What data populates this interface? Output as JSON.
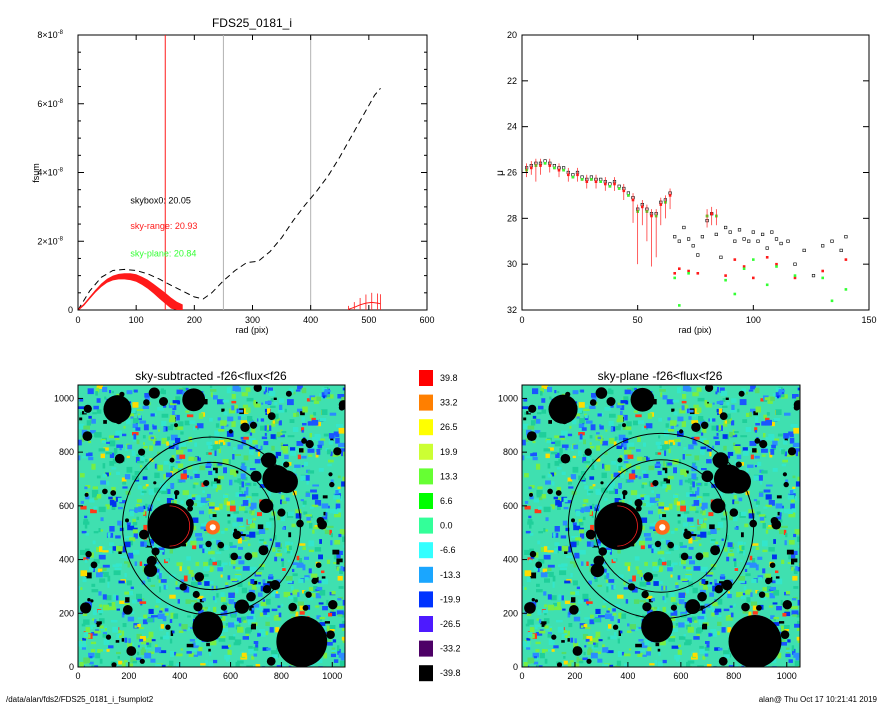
{
  "colors": {
    "red": "#ff1a1a",
    "green": "#33ff33",
    "black": "#000000",
    "gray": "#b3b3b3",
    "map_cyan": "#33e6cc",
    "map_lime": "#77ee44",
    "map_blue": "#1a55ff",
    "ring": "#000000"
  },
  "footer": {
    "left": "/data/alan/fds2/FDS25_0181_i_fsumplot2",
    "right": "alan@  Thu Oct 17 10:21:41 2019"
  },
  "chart_data": [
    {
      "type": "line",
      "title": "FDS25_0181_i",
      "xlabel": "rad (pix)",
      "ylabel": "fsum",
      "xlim": [
        0,
        600
      ],
      "ylim": [
        0,
        8e-08
      ],
      "xticks": [
        "0",
        "100",
        "200",
        "300",
        "400",
        "500",
        "600"
      ],
      "yticks": [
        {
          "mant": "0",
          "exp": ""
        },
        {
          "mant": "2×10",
          "exp": "-8"
        },
        {
          "mant": "4×10",
          "exp": "-8"
        },
        {
          "mant": "6×10",
          "exp": "-8"
        },
        {
          "mant": "8×10",
          "exp": "-8"
        }
      ],
      "vlines": [
        {
          "x": 150,
          "color": "red"
        },
        {
          "x": 250,
          "color": "gray"
        },
        {
          "x": 400,
          "color": "gray"
        }
      ],
      "series": [
        {
          "style": "dashed",
          "color": "black",
          "x": [
            0,
            20,
            40,
            60,
            80,
            100,
            120,
            140,
            160,
            180,
            200,
            215,
            230,
            250,
            270,
            290,
            310,
            330,
            350,
            370,
            390,
            410,
            430,
            450,
            470,
            490,
            510,
            520
          ],
          "y": [
            0,
            5.5e-09,
            9.5e-09,
            1.15e-08,
            1.18e-08,
            1.15e-08,
            1.05e-08,
            9e-09,
            7.2e-09,
            5.5e-09,
            3.8e-09,
            3.2e-09,
            5e-09,
            8.5e-09,
            1.15e-08,
            1.38e-08,
            1.42e-08,
            1.7e-08,
            2.1e-08,
            2.6e-08,
            3.05e-08,
            3.45e-08,
            3.9e-08,
            4.45e-08,
            5.05e-08,
            5.65e-08,
            6.25e-08,
            6.45e-08
          ]
        },
        {
          "style": "errorband",
          "color": "red",
          "x": [
            0,
            10,
            20,
            30,
            40,
            50,
            60,
            70,
            80,
            90,
            100,
            110,
            120,
            130,
            140,
            150,
            160,
            170,
            180
          ],
          "y": [
            0,
            1.5e-09,
            3.5e-09,
            5.5e-09,
            7.2e-09,
            8.5e-09,
            9.3e-09,
            9.7e-09,
            9.8e-09,
            9.7e-09,
            9.3e-09,
            8.5e-09,
            7.5e-09,
            6.2e-09,
            4.8e-09,
            3.4e-09,
            2e-09,
            8e-10,
            0.0
          ],
          "err": [
            0,
            2e-10,
            3e-10,
            4e-10,
            5e-10,
            6e-10,
            7e-10,
            8e-10,
            9e-10,
            1e-09,
            1.1e-09,
            1.2e-09,
            1.3e-09,
            1.4e-09,
            1.5e-09,
            1.6e-09,
            1.6e-09,
            1.6e-09,
            1.6e-09
          ]
        },
        {
          "style": "errorbars",
          "color": "red",
          "x": [
            465,
            475,
            485,
            495,
            505,
            515,
            520
          ],
          "y": [
            2e-10,
            8e-10,
            1.5e-09,
            2e-09,
            2.2e-09,
            2e-09,
            1.8e-09
          ],
          "err": [
            1e-09,
            1.5e-09,
            2e-09,
            2.5e-09,
            2.8e-09,
            2.8e-09,
            2.8e-09
          ]
        }
      ],
      "annotations": [
        {
          "text": "skybox0: 20.05",
          "color": "black",
          "x": 90,
          "y": 3.1e-08
        },
        {
          "text": "sky-range: 20.93",
          "color": "red",
          "x": 90,
          "y": 2.35e-08
        },
        {
          "text": "sky-plane: 20.84",
          "color": "green",
          "x": 90,
          "y": 1.55e-08
        }
      ]
    },
    {
      "type": "scatter",
      "title": "",
      "xlabel": "rad (pix)",
      "ylabel": "μ",
      "xlim": [
        0,
        150
      ],
      "ylim": [
        20,
        32
      ],
      "y_inverted": true,
      "xticks": [
        "0",
        "50",
        "100",
        "150"
      ],
      "yticks": [
        "20",
        "22",
        "24",
        "26",
        "28",
        "30",
        "32"
      ],
      "series": [
        {
          "color": "black",
          "marker": "square-open",
          "x": [
            2,
            4,
            6,
            8,
            10,
            12,
            14,
            16,
            18,
            20,
            22,
            24,
            26,
            28,
            30,
            32,
            34,
            36,
            38,
            40,
            42,
            44,
            46,
            48,
            50,
            52,
            54,
            56,
            58,
            60,
            62,
            64,
            66,
            68,
            70,
            72,
            74,
            76,
            78,
            80,
            82,
            84,
            86,
            88,
            90,
            92,
            94,
            96,
            98,
            100,
            102,
            104,
            106,
            108,
            110,
            112,
            115,
            118,
            122,
            126,
            130,
            134,
            138,
            140
          ],
          "y": [
            25.8,
            25.7,
            25.6,
            25.6,
            25.5,
            25.6,
            25.7,
            25.8,
            25.8,
            26.0,
            26.1,
            26.0,
            26.2,
            26.3,
            26.2,
            26.3,
            26.3,
            26.4,
            26.5,
            26.4,
            26.6,
            26.7,
            26.9,
            27.1,
            27.6,
            27.4,
            27.6,
            27.8,
            27.8,
            27.3,
            27.2,
            26.9,
            28.8,
            29.0,
            28.4,
            28.9,
            29.2,
            29.6,
            28.8,
            28.1,
            27.8,
            28.7,
            29.7,
            28.4,
            28.6,
            29.0,
            28.5,
            28.9,
            29.0,
            28.6,
            29.0,
            28.7,
            29.3,
            28.6,
            28.9,
            29.1,
            29.0,
            30.0,
            29.4,
            30.5,
            29.2,
            29.0,
            29.4,
            28.8
          ]
        },
        {
          "color": "red",
          "marker": "square-filled",
          "x": [
            2,
            4,
            6,
            8,
            10,
            12,
            14,
            16,
            18,
            20,
            22,
            24,
            26,
            28,
            30,
            32,
            34,
            36,
            38,
            40,
            42,
            44,
            46,
            48,
            50,
            52,
            54,
            56,
            58,
            60,
            62,
            64,
            66,
            68,
            72,
            76,
            80,
            82,
            84,
            88,
            92,
            96,
            100,
            106,
            110,
            118,
            130,
            140
          ],
          "y": [
            25.9,
            25.8,
            25.7,
            25.7,
            25.6,
            25.7,
            25.8,
            25.9,
            25.9,
            26.1,
            26.2,
            26.1,
            26.3,
            26.4,
            26.3,
            26.4,
            26.4,
            26.5,
            26.6,
            26.5,
            26.7,
            26.8,
            27.0,
            27.2,
            27.7,
            27.5,
            27.7,
            27.9,
            27.9,
            27.4,
            27.3,
            27.0,
            30.4,
            30.2,
            30.3,
            30.4,
            27.9,
            27.8,
            27.9,
            30.5,
            29.8,
            30.1,
            30.6,
            29.7,
            30.0,
            30.6,
            30.3,
            29.8
          ]
        },
        {
          "color": "green",
          "marker": "square-filled",
          "x": [
            2,
            6,
            10,
            14,
            18,
            22,
            26,
            30,
            34,
            38,
            42,
            46,
            50,
            54,
            58,
            62,
            66,
            68,
            72,
            80,
            84,
            88,
            92,
            96,
            100,
            106,
            110,
            118,
            130,
            134,
            140
          ],
          "y": [
            25.9,
            25.7,
            25.6,
            25.8,
            25.9,
            26.2,
            26.3,
            26.3,
            26.4,
            26.6,
            26.7,
            27.0,
            27.7,
            27.7,
            27.9,
            27.3,
            30.6,
            31.8,
            30.4,
            27.9,
            27.9,
            30.7,
            31.3,
            30.2,
            29.8,
            30.9,
            30.1,
            30.5,
            30.6,
            31.6,
            31.1
          ]
        },
        {
          "color": "red",
          "style": "errorbars",
          "x": [
            2,
            4,
            6,
            8,
            12,
            16,
            20,
            24,
            28,
            32,
            36,
            40,
            44,
            48,
            50,
            52,
            54,
            56,
            58,
            60,
            62,
            64,
            80,
            82,
            84
          ],
          "y": [
            25.9,
            25.8,
            25.7,
            25.7,
            25.7,
            25.9,
            26.1,
            26.1,
            26.4,
            26.4,
            26.5,
            26.5,
            26.8,
            27.2,
            27.7,
            27.5,
            27.7,
            27.9,
            27.9,
            27.4,
            27.3,
            27.0,
            27.9,
            27.8,
            27.9
          ],
          "err_low": [
            0.3,
            0.3,
            0.7,
            0.4,
            0.3,
            0.3,
            0.3,
            0.3,
            0.3,
            0.3,
            0.3,
            0.3,
            0.4,
            1.0,
            2.3,
            0.8,
            1.3,
            2.2,
            1.8,
            0.9,
            0.7,
            0.6,
            0.5,
            0.5,
            0.4
          ],
          "err_high": [
            0.3,
            0.3,
            0.3,
            0.3,
            0.3,
            0.3,
            0.3,
            0.3,
            0.3,
            0.3,
            0.3,
            0.3,
            0.3,
            0.3,
            0.3,
            0.3,
            0.3,
            0.3,
            0.3,
            0.3,
            0.3,
            0.3,
            0.3,
            0.3,
            0.3
          ]
        }
      ]
    },
    {
      "type": "heatmap",
      "title": "sky-subtracted -f26<flux<f26",
      "xlim": [
        0,
        1050
      ],
      "ylim": [
        0,
        1050
      ],
      "xticks": [
        "0",
        "200",
        "400",
        "600",
        "800",
        "1000"
      ],
      "yticks": [
        "0",
        "200",
        "400",
        "600",
        "800",
        "1000"
      ],
      "rings": [
        {
          "cx": 525,
          "cy": 525,
          "r": 350
        },
        {
          "cx": 525,
          "cy": 525,
          "r": 250
        }
      ],
      "masks": [
        {
          "x": 365,
          "y": 525,
          "r": 90
        },
        {
          "x": 880,
          "y": 95,
          "r": 100
        },
        {
          "x": 510,
          "y": 150,
          "r": 60
        },
        {
          "x": 155,
          "y": 960,
          "r": 55
        },
        {
          "x": 455,
          "y": 995,
          "r": 45
        },
        {
          "x": 780,
          "y": 700,
          "r": 55
        },
        {
          "x": 820,
          "y": 690,
          "r": 45
        },
        {
          "x": 750,
          "y": 770,
          "r": 30
        },
        {
          "x": 740,
          "y": 600,
          "r": 28
        },
        {
          "x": 700,
          "y": 710,
          "r": 22
        },
        {
          "x": 645,
          "y": 225,
          "r": 28
        },
        {
          "x": 285,
          "y": 360,
          "r": 26
        },
        {
          "x": 290,
          "y": 395,
          "r": 20
        },
        {
          "x": 305,
          "y": 430,
          "r": 16
        },
        {
          "x": 775,
          "y": 305,
          "r": 20
        },
        {
          "x": 800,
          "y": 575,
          "r": 16
        },
        {
          "x": 300,
          "y": 1020,
          "r": 22
        },
        {
          "x": 30,
          "y": 220,
          "r": 22
        },
        {
          "x": 930,
          "y": 320,
          "r": 12
        },
        {
          "x": 250,
          "y": 800,
          "r": 14
        },
        {
          "x": 690,
          "y": 900,
          "r": 14
        },
        {
          "x": 465,
          "y": 270,
          "r": 14
        }
      ],
      "bright_core": {
        "x": 530,
        "y": 520
      }
    },
    {
      "type": "colorbar",
      "labels": [
        "39.8",
        "33.2",
        "26.5",
        "19.9",
        "13.3",
        "6.6",
        "0.0",
        "-6.6",
        "-13.3",
        "-19.9",
        "-26.5",
        "-33.2",
        "-39.8"
      ],
      "colors": [
        "#ff0000",
        "#ff7f00",
        "#ffff00",
        "#ccff33",
        "#66ff33",
        "#00ff00",
        "#33ff99",
        "#33ffff",
        "#1aa6ff",
        "#0033ff",
        "#4d1aff",
        "#4d0066",
        "#000000"
      ]
    },
    {
      "type": "heatmap",
      "title": "sky-plane -f26<flux<f26",
      "xlim": [
        0,
        1050
      ],
      "ylim": [
        0,
        1050
      ],
      "xticks": [
        "0",
        "200",
        "400",
        "600",
        "800",
        "1000"
      ],
      "yticks": [
        "0",
        "200",
        "400",
        "600",
        "800",
        "1000"
      ]
    }
  ]
}
